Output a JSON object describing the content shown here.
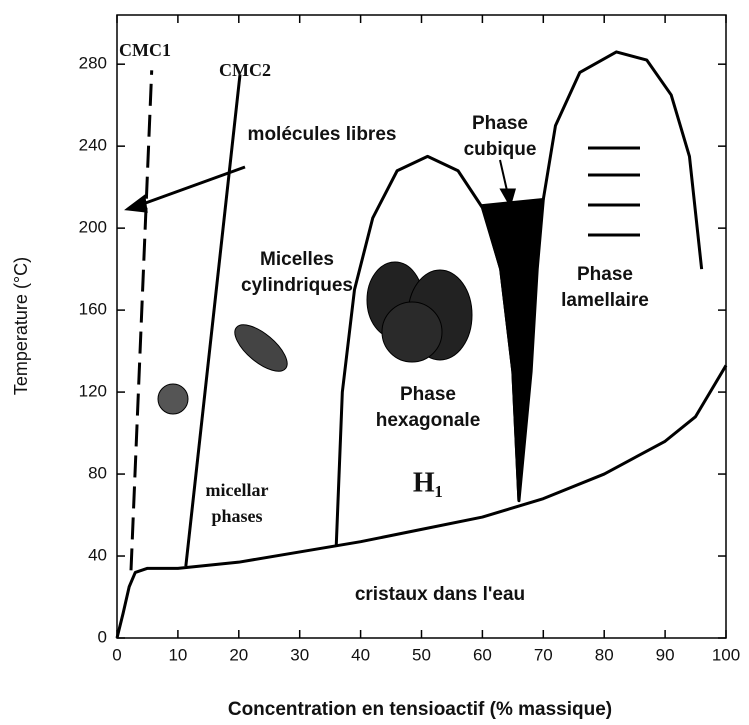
{
  "chart_data": {
    "type": "phase-diagram",
    "x_label": "Concentration en tensioactif (% massique)",
    "y_label": "Temperature (°C)",
    "xlim": [
      0,
      100
    ],
    "ylim": [
      0,
      304
    ],
    "xticks": [
      0,
      10,
      20,
      30,
      40,
      50,
      60,
      70,
      80,
      90,
      100
    ],
    "yticks": [
      0,
      40,
      80,
      120,
      160,
      200,
      240,
      280
    ],
    "color": "#000000",
    "curves": [
      {
        "x": [
          0,
          1,
          2,
          3,
          5,
          10,
          20,
          30,
          40,
          50,
          60,
          70,
          80,
          90,
          95,
          100
        ],
        "y": [
          0,
          12,
          25,
          32,
          34,
          34,
          37,
          42,
          47,
          53,
          59,
          68,
          80,
          96,
          108,
          133
        ],
        "style": "solid"
      },
      {
        "x": [
          2.3,
          5.7
        ],
        "y": [
          33,
          277
        ],
        "style": "dashed"
      },
      {
        "x": [
          11.3,
          20.2
        ],
        "y": [
          35,
          275
        ],
        "style": "solid"
      },
      {
        "x": [
          36,
          37,
          39,
          42,
          46,
          51,
          56,
          60,
          63,
          65,
          66
        ],
        "y": [
          45,
          120,
          170,
          205,
          228,
          235,
          228,
          210,
          180,
          130,
          67
        ],
        "style": "solid"
      },
      {
        "x": [
          60,
          70,
          69,
          68,
          66,
          65,
          63
        ],
        "y": [
          211,
          214,
          180,
          130,
          67,
          130,
          180
        ],
        "style": "filled"
      },
      {
        "x": [
          70,
          72,
          76,
          82,
          87,
          91,
          94,
          96
        ],
        "y": [
          214,
          250,
          276,
          286,
          282,
          265,
          235,
          180
        ],
        "style": "solid"
      }
    ],
    "annotations": [
      [
        "CMC1"
      ],
      [
        "CMC2"
      ],
      [
        "molécules libres"
      ],
      [
        "Micelles",
        "cylindriques"
      ],
      [
        "Phase",
        "cubique"
      ],
      [
        "Phase",
        "lamellaire"
      ],
      [
        "Phase",
        "hexagonale"
      ],
      [
        "H₁"
      ],
      [
        "micellar",
        "phases"
      ],
      [
        "cristaux dans l'eau"
      ]
    ]
  }
}
